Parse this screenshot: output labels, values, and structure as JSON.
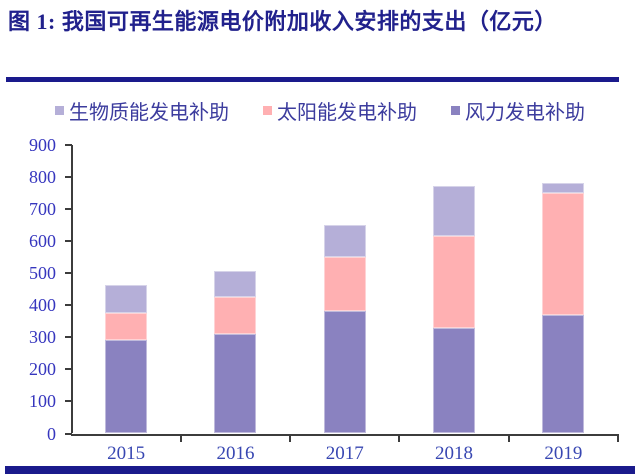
{
  "figure": {
    "title": "图 1: 我国可再生能源电价附加收入安排的支出（亿元）"
  },
  "colors": {
    "title_navy": "#21218C",
    "separator_navy": "#1A1A8C",
    "axis_line": "#3C3C3C",
    "y_label_blue": "#3636BE",
    "x_label_blue": "#3847B2",
    "legend_text": "#3C3C9E",
    "wind": "#8A82C0",
    "solar": "#FFB0B2",
    "biomass": "#B5AFD8"
  },
  "chart_data": {
    "type": "bar",
    "stacked": true,
    "title": "我国可再生能源电价附加收入安排的支出（亿元）",
    "xlabel": "",
    "ylabel": "",
    "categories": [
      "2015",
      "2016",
      "2017",
      "2018",
      "2019"
    ],
    "series": [
      {
        "name": "风力发电补助",
        "color_key": "wind",
        "values": [
          290,
          310,
          381,
          330,
          369
        ]
      },
      {
        "name": "太阳能发电补助",
        "color_key": "solar",
        "values": [
          85,
          116,
          170,
          285,
          382
        ]
      },
      {
        "name": "生物质能发电补助",
        "color_key": "biomass",
        "values": [
          87,
          82,
          100,
          158,
          30
        ]
      }
    ],
    "stack_order_bottom_to_top": [
      "风力发电补助",
      "太阳能发电补助",
      "生物质能发电补助"
    ],
    "legend_display_order": [
      "生物质能发电补助",
      "太阳能发电补助",
      "风力发电补助"
    ],
    "ylim": [
      0,
      900
    ],
    "ytick_step": 100,
    "grid": false,
    "legend_position": "top"
  }
}
